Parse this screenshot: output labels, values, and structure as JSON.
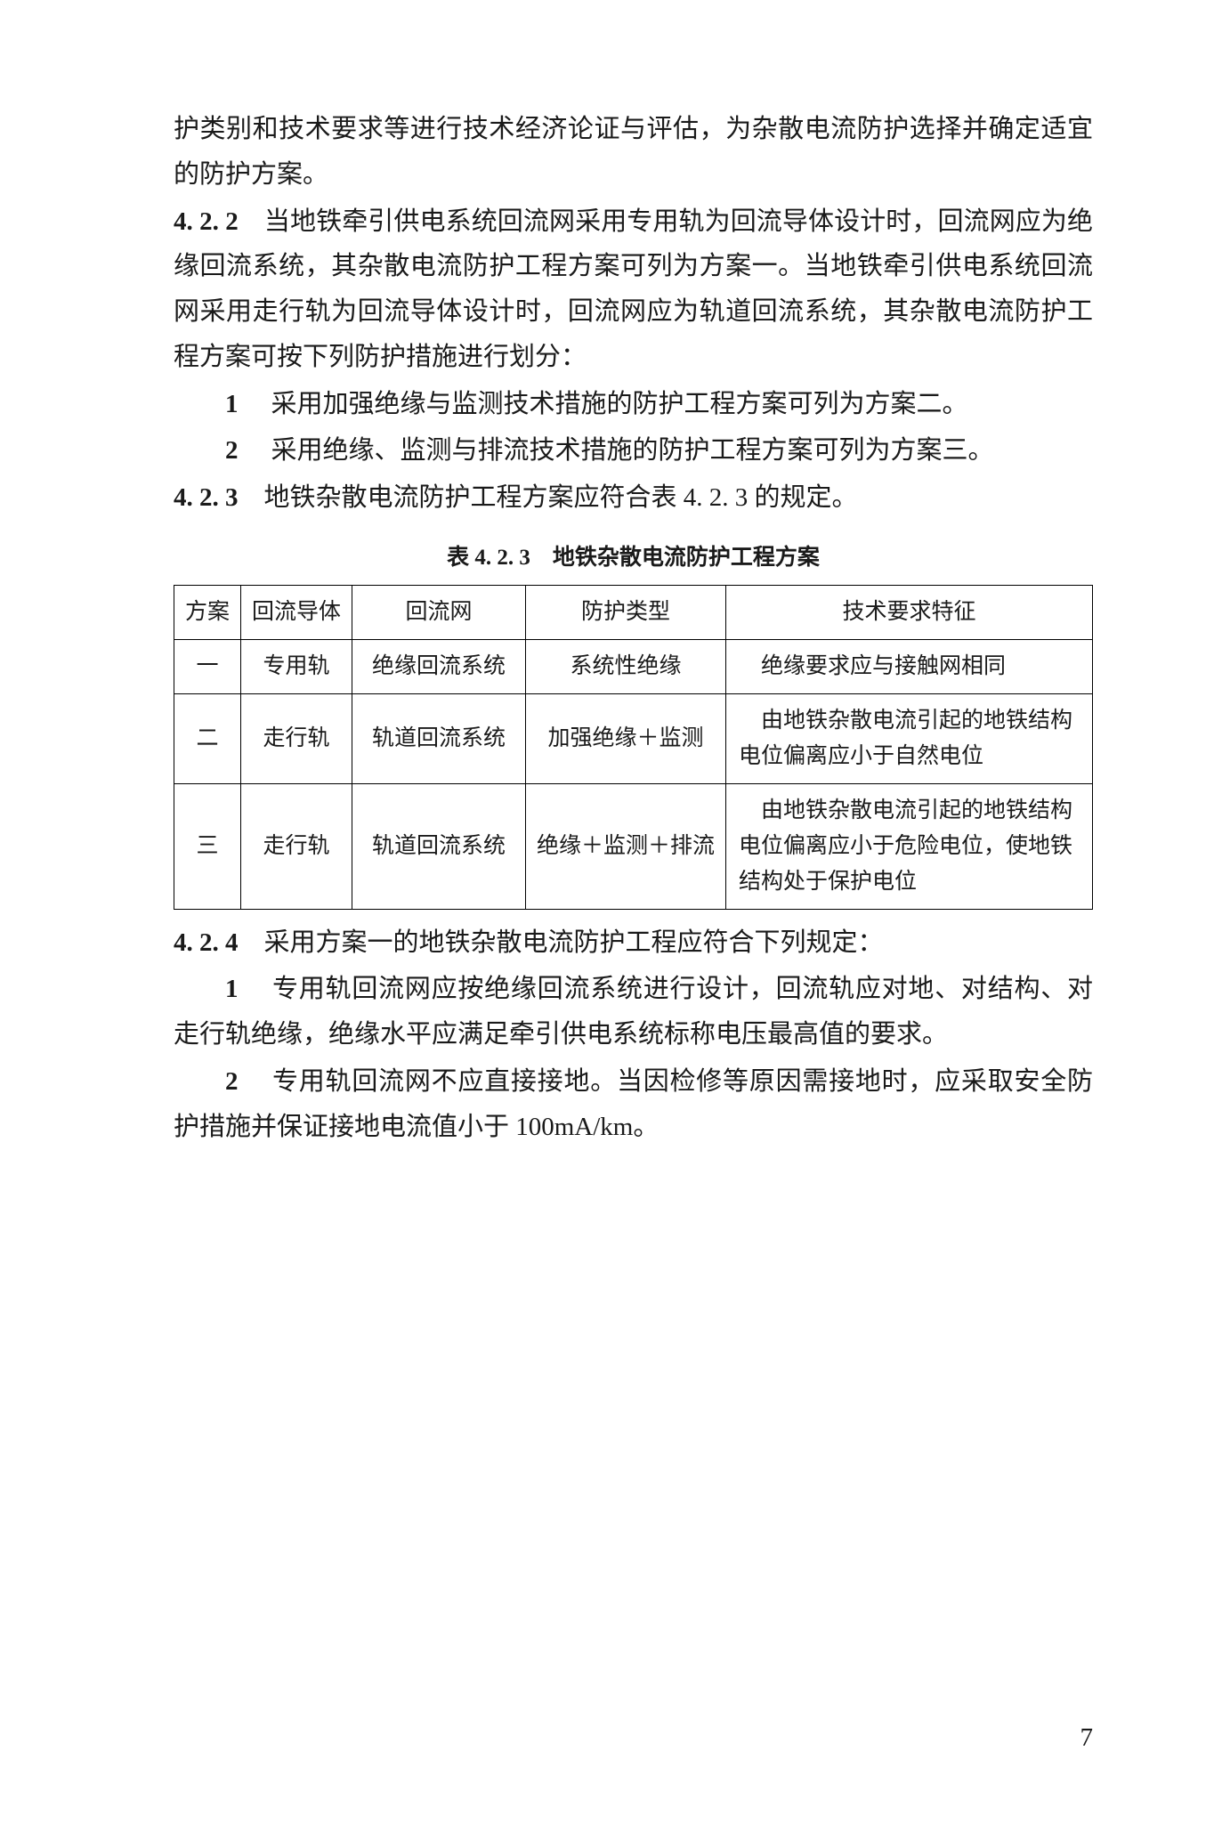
{
  "intro": {
    "line1": "护类别和技术要求等进行技术经济论证与评估，为杂散电流防护选择并确定适宜的防护方案。"
  },
  "section422": {
    "num": "4. 2. 2",
    "text": "　当地铁牵引供电系统回流网采用专用轨为回流导体设计时，回流网应为绝缘回流系统，其杂散电流防护工程方案可列为方案一。当地铁牵引供电系统回流网采用走行轨为回流导体设计时，回流网应为轨道回流系统，其杂散电流防护工程方案可按下列防护措施进行划分：",
    "item1_num": "1",
    "item1": "　采用加强绝缘与监测技术措施的防护工程方案可列为方案二。",
    "item2_num": "2",
    "item2": "　采用绝缘、监测与排流技术措施的防护工程方案可列为方案三。"
  },
  "section423": {
    "num": "4. 2. 3",
    "text": "　地铁杂散电流防护工程方案应符合表 4. 2. 3 的规定。"
  },
  "table": {
    "caption": "表 4. 2. 3　地铁杂散电流防护工程方案",
    "headers": [
      "方案",
      "回流导体",
      "回流网",
      "防护类型",
      "技术要求特征"
    ],
    "rows": [
      [
        "一",
        "专用轨",
        "绝缘回流系统",
        "系统性绝缘",
        "　绝缘要求应与接触网相同"
      ],
      [
        "二",
        "走行轨",
        "轨道回流系统",
        "加强绝缘＋监测",
        "　由地铁杂散电流引起的地铁结构电位偏离应小于自然电位"
      ],
      [
        "三",
        "走行轨",
        "轨道回流系统",
        "绝缘＋监测＋排流",
        "　由地铁杂散电流引起的地铁结构电位偏离应小于危险电位，使地铁结构处于保护电位"
      ]
    ]
  },
  "section424": {
    "num": "4. 2. 4",
    "text": "　采用方案一的地铁杂散电流防护工程应符合下列规定：",
    "item1_num": "1",
    "item1": "　专用轨回流网应按绝缘回流系统进行设计，回流轨应对地、对结构、对走行轨绝缘，绝缘水平应满足牵引供电系统标称电压最高值的要求。",
    "item2_num": "2",
    "item2": "　专用轨回流网不应直接接地。当因检修等原因需接地时，应采取安全防护措施并保证接地电流值小于 100mA/km。"
  },
  "page_number": "7"
}
